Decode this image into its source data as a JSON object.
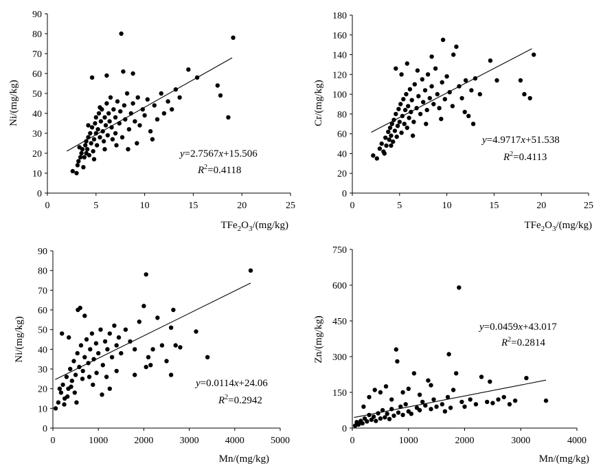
{
  "chart_data": [
    {
      "type": "scatter",
      "xlabel_parts": [
        "TFe",
        "2",
        "O",
        "3",
        "/(mg/kg)"
      ],
      "ylabel": "Ni/(mg/kg)",
      "xlim": [
        0,
        25
      ],
      "ylim": [
        0,
        90
      ],
      "xticks": [
        "0",
        "5",
        "10",
        "15",
        "20",
        "25"
      ],
      "yticks": [
        "0",
        "10",
        "20",
        "30",
        "40",
        "50",
        "60",
        "70",
        "80",
        "90"
      ],
      "equation": {
        "y": "y",
        "eq": "=2.7567",
        "x": "x",
        "rest": "+15.506"
      },
      "r2": {
        "r": "R",
        "sup": "2",
        "val": "=0.4118"
      },
      "trend": {
        "slope": 2.7567,
        "intercept": 15.506,
        "x_range": [
          2,
          19
        ]
      },
      "grid": false,
      "points": [
        [
          2.6,
          11
        ],
        [
          3,
          10
        ],
        [
          3.1,
          14
        ],
        [
          3.2,
          16
        ],
        [
          3.4,
          18
        ],
        [
          3.5,
          20
        ],
        [
          3.6,
          22
        ],
        [
          3.8,
          18
        ],
        [
          3.9,
          24
        ],
        [
          4,
          20
        ],
        [
          4,
          26
        ],
        [
          4.1,
          22
        ],
        [
          4.2,
          28
        ],
        [
          4.3,
          19
        ],
        [
          4.4,
          30
        ],
        [
          4.5,
          25
        ],
        [
          4.6,
          33
        ],
        [
          4.7,
          21
        ],
        [
          4.8,
          27
        ],
        [
          4.9,
          35
        ],
        [
          5,
          30
        ],
        [
          5,
          38
        ],
        [
          5.1,
          24
        ],
        [
          5.2,
          32
        ],
        [
          5.3,
          40
        ],
        [
          5.4,
          28
        ],
        [
          5.5,
          36
        ],
        [
          5.6,
          42
        ],
        [
          5.7,
          31
        ],
        [
          5.8,
          26
        ],
        [
          5.9,
          38
        ],
        [
          6,
          34
        ],
        [
          6.1,
          45
        ],
        [
          6.2,
          29
        ],
        [
          6.3,
          40
        ],
        [
          6.4,
          36
        ],
        [
          6.5,
          48
        ],
        [
          6.6,
          33
        ],
        [
          6.8,
          42
        ],
        [
          7,
          30
        ],
        [
          7,
          38
        ],
        [
          7.2,
          46
        ],
        [
          7.4,
          35
        ],
        [
          7.5,
          41
        ],
        [
          7.7,
          28
        ],
        [
          7.9,
          44
        ],
        [
          8,
          37
        ],
        [
          8.2,
          50
        ],
        [
          8.4,
          32
        ],
        [
          8.6,
          40
        ],
        [
          8.8,
          45
        ],
        [
          9,
          36
        ],
        [
          9.3,
          48
        ],
        [
          9.5,
          34
        ],
        [
          9.8,
          42
        ],
        [
          10,
          39
        ],
        [
          10.3,
          47
        ],
        [
          10.6,
          31
        ],
        [
          11,
          44
        ],
        [
          11.3,
          37
        ],
        [
          11.7,
          50
        ],
        [
          12,
          40
        ],
        [
          12.4,
          46
        ],
        [
          12.8,
          42
        ],
        [
          13.2,
          52
        ],
        [
          13.6,
          48
        ],
        [
          14.5,
          62
        ],
        [
          15.4,
          58
        ],
        [
          17.5,
          54
        ],
        [
          17.8,
          49
        ],
        [
          18.6,
          38
        ],
        [
          19.1,
          78
        ],
        [
          7.6,
          80
        ],
        [
          4.6,
          58
        ],
        [
          6.1,
          59
        ],
        [
          7.8,
          61
        ],
        [
          8.8,
          60
        ],
        [
          3.3,
          23
        ],
        [
          4.2,
          34
        ],
        [
          5.4,
          43
        ],
        [
          6.7,
          27
        ],
        [
          5.9,
          22
        ],
        [
          4.8,
          17
        ],
        [
          3.7,
          13
        ],
        [
          9.2,
          25
        ],
        [
          10.8,
          27
        ],
        [
          8.3,
          22
        ],
        [
          7.1,
          24
        ]
      ]
    },
    {
      "type": "scatter",
      "xlabel_parts": [
        "TFe",
        "2",
        "O",
        "3",
        "/(mg/kg)"
      ],
      "ylabel": "Cr/(mg/kg)",
      "xlim": [
        0,
        25
      ],
      "ylim": [
        0,
        180
      ],
      "xticks": [
        "0",
        "5",
        "10",
        "15",
        "20",
        "25"
      ],
      "yticks": [
        "0",
        "20",
        "40",
        "60",
        "80",
        "100",
        "120",
        "140",
        "160",
        "180"
      ],
      "equation": {
        "y": "y",
        "eq": "=4.9717",
        "x": "x",
        "rest": "+51.538"
      },
      "r2": {
        "r": "R",
        "sup": "2",
        "val": "=0.4113"
      },
      "trend": {
        "slope": 4.9717,
        "intercept": 51.538,
        "x_range": [
          2,
          19
        ]
      },
      "grid": false,
      "points": [
        [
          2.2,
          38
        ],
        [
          2.6,
          35
        ],
        [
          2.9,
          45
        ],
        [
          3.1,
          50
        ],
        [
          3.3,
          42
        ],
        [
          3.5,
          56
        ],
        [
          3.6,
          48
        ],
        [
          3.8,
          62
        ],
        [
          3.9,
          54
        ],
        [
          4,
          66
        ],
        [
          4.1,
          58
        ],
        [
          4.2,
          70
        ],
        [
          4.3,
          52
        ],
        [
          4.4,
          74
        ],
        [
          4.5,
          63
        ],
        [
          4.6,
          80
        ],
        [
          4.7,
          57
        ],
        [
          4.8,
          68
        ],
        [
          4.9,
          85
        ],
        [
          5,
          72
        ],
        [
          5.1,
          90
        ],
        [
          5.2,
          61
        ],
        [
          5.3,
          78
        ],
        [
          5.4,
          95
        ],
        [
          5.5,
          70
        ],
        [
          5.6,
          84
        ],
        [
          5.7,
          100
        ],
        [
          5.8,
          66
        ],
        [
          5.9,
          88
        ],
        [
          6,
          76
        ],
        [
          6.1,
          105
        ],
        [
          6.2,
          82
        ],
        [
          6.3,
          94
        ],
        [
          6.5,
          72
        ],
        [
          6.6,
          110
        ],
        [
          6.8,
          86
        ],
        [
          7,
          98
        ],
        [
          7.2,
          80
        ],
        [
          7.4,
          115
        ],
        [
          7.5,
          92
        ],
        [
          7.7,
          104
        ],
        [
          7.9,
          84
        ],
        [
          8,
          120
        ],
        [
          8.2,
          96
        ],
        [
          8.4,
          108
        ],
        [
          8.6,
          90
        ],
        [
          8.8,
          126
        ],
        [
          9,
          100
        ],
        [
          9.2,
          86
        ],
        [
          9.5,
          112
        ],
        [
          9.8,
          95
        ],
        [
          10,
          118
        ],
        [
          10.3,
          102
        ],
        [
          10.6,
          88
        ],
        [
          11,
          148
        ],
        [
          11.3,
          108
        ],
        [
          11.6,
          96
        ],
        [
          12,
          114
        ],
        [
          12.3,
          78
        ],
        [
          12.6,
          104
        ],
        [
          13,
          116
        ],
        [
          13.5,
          100
        ],
        [
          14.6,
          134
        ],
        [
          15.3,
          114
        ],
        [
          17.8,
          114
        ],
        [
          18.2,
          100
        ],
        [
          18.8,
          96
        ],
        [
          19.2,
          140
        ],
        [
          9.6,
          155
        ],
        [
          4.6,
          126
        ],
        [
          5.8,
          131
        ],
        [
          8.4,
          138
        ],
        [
          10.7,
          140
        ],
        [
          5.2,
          120
        ],
        [
          6.9,
          124
        ],
        [
          4.1,
          48
        ],
        [
          3.4,
          40
        ],
        [
          6.4,
          58
        ],
        [
          7.8,
          70
        ],
        [
          9.4,
          75
        ],
        [
          11.9,
          82
        ],
        [
          12.8,
          70
        ]
      ]
    },
    {
      "type": "scatter",
      "xlabel": "Mn/(mg/kg)",
      "ylabel": "Ni/(mg/kg)",
      "xlim": [
        0,
        5000
      ],
      "ylim": [
        0,
        90
      ],
      "xticks": [
        "0",
        "1000",
        "2000",
        "3000",
        "4000",
        "5000"
      ],
      "yticks": [
        "0",
        "10",
        "20",
        "30",
        "40",
        "50",
        "60",
        "70",
        "80",
        "90"
      ],
      "equation": {
        "y": "y",
        "eq": "=0.0114",
        "x": "x",
        "rest": "+24.06"
      },
      "r2": {
        "r": "R",
        "sup": "2",
        "val": "=0.2942"
      },
      "trend": {
        "slope": 0.0114,
        "intercept": 24.06,
        "x_range": [
          50,
          4350
        ]
      },
      "grid": false,
      "points": [
        [
          60,
          10
        ],
        [
          120,
          13
        ],
        [
          180,
          18
        ],
        [
          220,
          22
        ],
        [
          260,
          15
        ],
        [
          300,
          26
        ],
        [
          340,
          20
        ],
        [
          380,
          30
        ],
        [
          420,
          24
        ],
        [
          460,
          34
        ],
        [
          500,
          27
        ],
        [
          540,
          38
        ],
        [
          580,
          31
        ],
        [
          620,
          42
        ],
        [
          660,
          29
        ],
        [
          700,
          36
        ],
        [
          740,
          45
        ],
        [
          780,
          33
        ],
        [
          820,
          40
        ],
        [
          860,
          48
        ],
        [
          900,
          35
        ],
        [
          950,
          43
        ],
        [
          1000,
          38
        ],
        [
          1050,
          50
        ],
        [
          1100,
          32
        ],
        [
          1150,
          44
        ],
        [
          1200,
          40
        ],
        [
          1250,
          48
        ],
        [
          1300,
          36
        ],
        [
          1350,
          52
        ],
        [
          1400,
          42
        ],
        [
          1450,
          46
        ],
        [
          1500,
          38
        ],
        [
          1600,
          50
        ],
        [
          1700,
          44
        ],
        [
          1800,
          40
        ],
        [
          1900,
          54
        ],
        [
          2000,
          62
        ],
        [
          2050,
          78
        ],
        [
          2100,
          36
        ],
        [
          2200,
          40
        ],
        [
          2300,
          56
        ],
        [
          2400,
          42
        ],
        [
          2500,
          34
        ],
        [
          2600,
          51
        ],
        [
          2650,
          60
        ],
        [
          2700,
          42
        ],
        [
          2800,
          41
        ],
        [
          3150,
          49
        ],
        [
          3400,
          36
        ],
        [
          4350,
          80
        ],
        [
          550,
          60
        ],
        [
          600,
          61
        ],
        [
          700,
          57
        ],
        [
          150,
          20
        ],
        [
          250,
          12
        ],
        [
          320,
          16
        ],
        [
          400,
          21
        ],
        [
          480,
          18
        ],
        [
          520,
          13
        ],
        [
          650,
          25
        ],
        [
          800,
          26
        ],
        [
          880,
          22
        ],
        [
          960,
          28
        ],
        [
          1080,
          17
        ],
        [
          1180,
          26
        ],
        [
          1250,
          20
        ],
        [
          1400,
          29
        ],
        [
          1800,
          27
        ],
        [
          2050,
          31
        ],
        [
          2150,
          32
        ],
        [
          2600,
          27
        ],
        [
          200,
          48
        ],
        [
          350,
          46
        ]
      ]
    },
    {
      "type": "scatter",
      "xlabel": "Mn/(mg/kg)",
      "ylabel": "Zn/(mg/kg)",
      "xlim": [
        0,
        4000
      ],
      "ylim": [
        0,
        750
      ],
      "xticks": [
        "0",
        "1000",
        "2000",
        "3000",
        "4000"
      ],
      "yticks": [
        "0",
        "150",
        "300",
        "450",
        "600",
        "750"
      ],
      "equation": {
        "y": "y",
        "eq": "=0.0459",
        "x": "x",
        "rest": "+43.017"
      },
      "r2": {
        "r": "R",
        "sup": "2",
        "val": "=0.2814"
      },
      "trend": {
        "slope": 0.0459,
        "intercept": 43.017,
        "x_range": [
          30,
          3450
        ]
      },
      "grid": false,
      "points": [
        [
          50,
          10
        ],
        [
          80,
          25
        ],
        [
          110,
          15
        ],
        [
          150,
          30
        ],
        [
          180,
          20
        ],
        [
          220,
          40
        ],
        [
          260,
          28
        ],
        [
          300,
          55
        ],
        [
          340,
          35
        ],
        [
          380,
          48
        ],
        [
          420,
          30
        ],
        [
          460,
          62
        ],
        [
          500,
          40
        ],
        [
          540,
          75
        ],
        [
          580,
          45
        ],
        [
          620,
          60
        ],
        [
          660,
          38
        ],
        [
          700,
          80
        ],
        [
          740,
          52
        ],
        [
          780,
          330
        ],
        [
          800,
          280
        ],
        [
          820,
          65
        ],
        [
          860,
          90
        ],
        [
          900,
          55
        ],
        [
          950,
          100
        ],
        [
          1000,
          70
        ],
        [
          1050,
          60
        ],
        [
          1100,
          230
        ],
        [
          1150,
          85
        ],
        [
          1200,
          75
        ],
        [
          1250,
          110
        ],
        [
          1300,
          95
        ],
        [
          1350,
          200
        ],
        [
          1400,
          80
        ],
        [
          1450,
          120
        ],
        [
          1500,
          90
        ],
        [
          1600,
          100
        ],
        [
          1650,
          70
        ],
        [
          1700,
          130
        ],
        [
          1720,
          310
        ],
        [
          1750,
          85
        ],
        [
          1800,
          160
        ],
        [
          1850,
          230
        ],
        [
          1900,
          590
        ],
        [
          1950,
          110
        ],
        [
          2000,
          90
        ],
        [
          2100,
          120
        ],
        [
          2200,
          100
        ],
        [
          2300,
          215
        ],
        [
          2400,
          110
        ],
        [
          2450,
          195
        ],
        [
          2500,
          105
        ],
        [
          2600,
          120
        ],
        [
          2700,
          130
        ],
        [
          2800,
          100
        ],
        [
          2900,
          115
        ],
        [
          3100,
          210
        ],
        [
          3450,
          115
        ],
        [
          400,
          160
        ],
        [
          500,
          150
        ],
        [
          600,
          175
        ],
        [
          300,
          130
        ],
        [
          200,
          90
        ],
        [
          1000,
          165
        ],
        [
          1200,
          140
        ],
        [
          900,
          150
        ],
        [
          700,
          120
        ],
        [
          1400,
          180
        ]
      ]
    }
  ]
}
